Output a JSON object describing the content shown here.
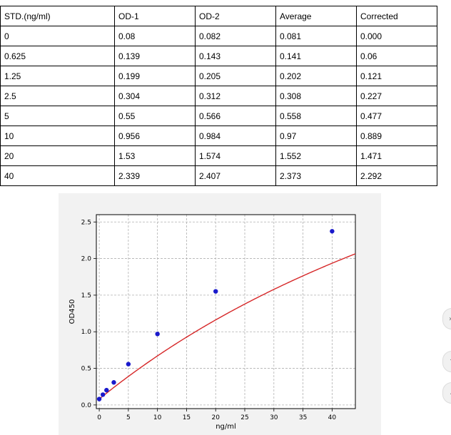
{
  "table": {
    "headers": [
      "STD.(ng/ml)",
      "OD-1",
      "OD-2",
      "Average",
      "Corrected"
    ],
    "rows": [
      [
        "0",
        "0.08",
        "0.082",
        "0.081",
        "0.000"
      ],
      [
        "0.625",
        "0.139",
        "0.143",
        "0.141",
        "0.06"
      ],
      [
        "1.25",
        "0.199",
        "0.205",
        "0.202",
        "0.121"
      ],
      [
        "2.5",
        "0.304",
        "0.312",
        "0.308",
        "0.227"
      ],
      [
        "5",
        "0.55",
        "0.566",
        "0.558",
        "0.477"
      ],
      [
        "10",
        "0.956",
        "0.984",
        "0.97",
        "0.889"
      ],
      [
        "20",
        "1.53",
        "1.574",
        "1.552",
        "1.471"
      ],
      [
        "40",
        "2.339",
        "2.407",
        "2.373",
        "2.292"
      ]
    ]
  },
  "chart_data": {
    "type": "scatter",
    "xlabel": "ng/ml",
    "ylabel": "OD450",
    "xlim": [
      -0.5,
      44
    ],
    "ylim": [
      -0.05,
      2.6
    ],
    "xticks": [
      0,
      5,
      10,
      15,
      20,
      25,
      30,
      35,
      40
    ],
    "yticks": [
      0.0,
      0.5,
      1.0,
      1.5,
      2.0,
      2.5
    ],
    "grid": true,
    "points": {
      "x": [
        0,
        0.625,
        1.25,
        2.5,
        5,
        10,
        20,
        40
      ],
      "y": [
        0.081,
        0.141,
        0.202,
        0.308,
        0.558,
        0.97,
        1.552,
        2.373
      ],
      "color": "#1a1acc"
    },
    "fit_curve": {
      "type": "4PL",
      "a": 0.081,
      "b": 1.0,
      "c": 101,
      "d": 6.62,
      "x_range": [
        0,
        44
      ],
      "color": "#d62728"
    }
  },
  "colors": {
    "panel_bg": "#f2f2f2",
    "grid": "#b0b0b0"
  },
  "side_buttons": [
    {
      "icon": "chevron-icon",
      "glyph": "›"
    },
    {
      "icon": "arrow-icon",
      "glyph": "↑"
    },
    {
      "icon": "arrow-icon",
      "glyph": "↓"
    }
  ]
}
